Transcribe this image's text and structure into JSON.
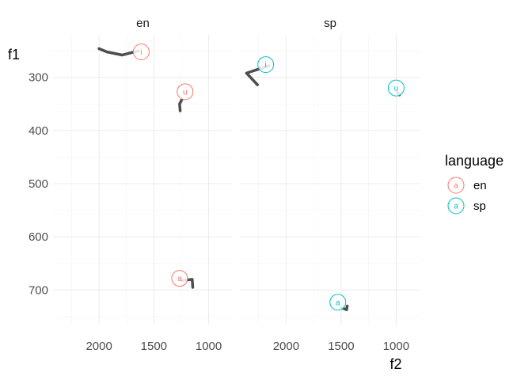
{
  "chart_data": {
    "type": "line",
    "panels": [
      "en",
      "sp"
    ],
    "xlabel": "f2",
    "ylabel": "f1",
    "x_reversed": true,
    "y_reversed": true,
    "xlim": [
      2420,
      780
    ],
    "ylim": [
      220,
      765
    ],
    "x_ticks": [
      2000,
      1500,
      1000
    ],
    "x_tick_labels": [
      "2000",
      "1500",
      "1000"
    ],
    "y_ticks": [
      300,
      400,
      500,
      600,
      700
    ],
    "y_tick_labels": [
      "300",
      "400",
      "500",
      "600",
      "700"
    ],
    "grid": true,
    "legend": {
      "title": "language",
      "position": "right",
      "entries": [
        {
          "label": "en",
          "key_text": "a",
          "color": "#F8766D"
        },
        {
          "label": "sp",
          "key_text": "a",
          "color": "#00BFC4"
        }
      ]
    },
    "series": [
      {
        "panel": "en",
        "language": "en",
        "vowel": "a",
        "color": "#F8766D",
        "label_point": {
          "f2": 1265,
          "f1": 678
        },
        "trajectory": [
          {
            "f2": 1240,
            "f1": 682
          },
          {
            "f2": 1150,
            "f1": 680
          },
          {
            "f2": 1145,
            "f1": 695
          }
        ]
      },
      {
        "panel": "en",
        "language": "en",
        "vowel": "i",
        "color": "#F8766D",
        "label_point": {
          "f2": 1615,
          "f1": 252
        },
        "trajectory": [
          {
            "f2": 2000,
            "f1": 246
          },
          {
            "f2": 1930,
            "f1": 252
          },
          {
            "f2": 1790,
            "f1": 258
          },
          {
            "f2": 1640,
            "f1": 250
          }
        ]
      },
      {
        "panel": "en",
        "language": "en",
        "vowel": "u",
        "color": "#F8766D",
        "label_point": {
          "f2": 1215,
          "f1": 327
        },
        "trajectory": [
          {
            "f2": 1245,
            "f1": 342
          },
          {
            "f2": 1265,
            "f1": 350
          },
          {
            "f2": 1260,
            "f1": 363
          }
        ]
      },
      {
        "panel": "sp",
        "language": "sp",
        "vowel": "a",
        "color": "#00BFC4",
        "label_point": {
          "f2": 1530,
          "f1": 723
        },
        "trajectory": [
          {
            "f2": 1500,
            "f1": 733
          },
          {
            "f2": 1450,
            "f1": 737
          },
          {
            "f2": 1445,
            "f1": 730
          }
        ]
      },
      {
        "panel": "sp",
        "language": "sp",
        "vowel": "i",
        "color": "#00BFC4",
        "label_point": {
          "f2": 2185,
          "f1": 276
        },
        "trajectory": [
          {
            "f2": 2155,
            "f1": 278
          },
          {
            "f2": 2360,
            "f1": 292
          },
          {
            "f2": 2260,
            "f1": 314
          }
        ]
      },
      {
        "panel": "sp",
        "language": "sp",
        "vowel": "u",
        "color": "#00BFC4",
        "label_point": {
          "f2": 1000,
          "f1": 320
        },
        "trajectory": [
          {
            "f2": 990,
            "f1": 328
          },
          {
            "f2": 970,
            "f1": 333
          }
        ]
      }
    ]
  }
}
